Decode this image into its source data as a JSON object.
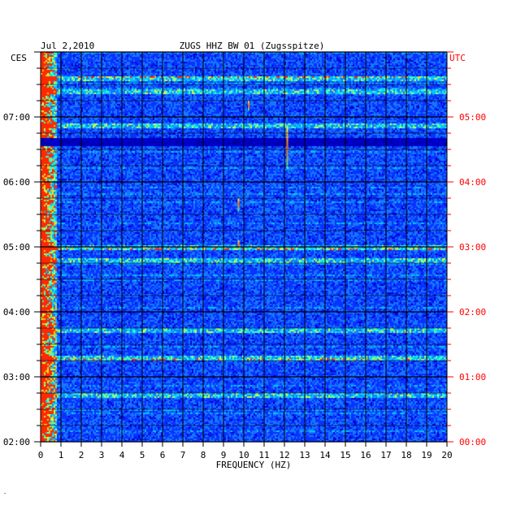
{
  "chart_data": {
    "type": "heatmap",
    "date": "Jul 2,2010",
    "station": "ZUGS HHZ BW 01 (Zugsspitze)",
    "left_zone": "CES",
    "right_zone": "UTC",
    "xlabel": "FREQUENCY (HZ)",
    "xlim": [
      0,
      20
    ],
    "x_ticks": [
      "0",
      "1",
      "2",
      "3",
      "4",
      "5",
      "6",
      "7",
      "8",
      "9",
      "10",
      "11",
      "12",
      "13",
      "14",
      "15",
      "16",
      "17",
      "18",
      "19",
      "20"
    ],
    "left_time_ticks": [
      "07:00",
      "06:00",
      "05:00",
      "04:00",
      "03:00",
      "02:00"
    ],
    "right_time_ticks": [
      "05:00",
      "04:00",
      "03:00",
      "02:00",
      "01:00",
      "00:00"
    ],
    "time_range_hours": 6,
    "colors": {
      "low": "#0000b4",
      "mid": "#0a3cff",
      "high": "#ff0000",
      "utc_text": "#ff0000"
    },
    "features": {
      "quiet_band_hours_from_bottom": [
        4.55,
        4.7
      ],
      "strong_rows_hours_from_bottom": [
        0.72,
        1.3,
        1.73,
        2.8,
        3.0,
        4.88,
        5.4,
        5.6
      ],
      "spot_lines": [
        {
          "freq": 9.7,
          "hours_from_bottom": [
            3.55,
            3.75
          ]
        },
        {
          "freq": 9.7,
          "hours_from_bottom": [
            2.95,
            3.1
          ]
        },
        {
          "freq": 12.1,
          "hours_from_bottom": [
            4.2,
            4.85
          ]
        },
        {
          "freq": 10.2,
          "hours_from_bottom": [
            5.1,
            5.25
          ]
        }
      ]
    }
  }
}
